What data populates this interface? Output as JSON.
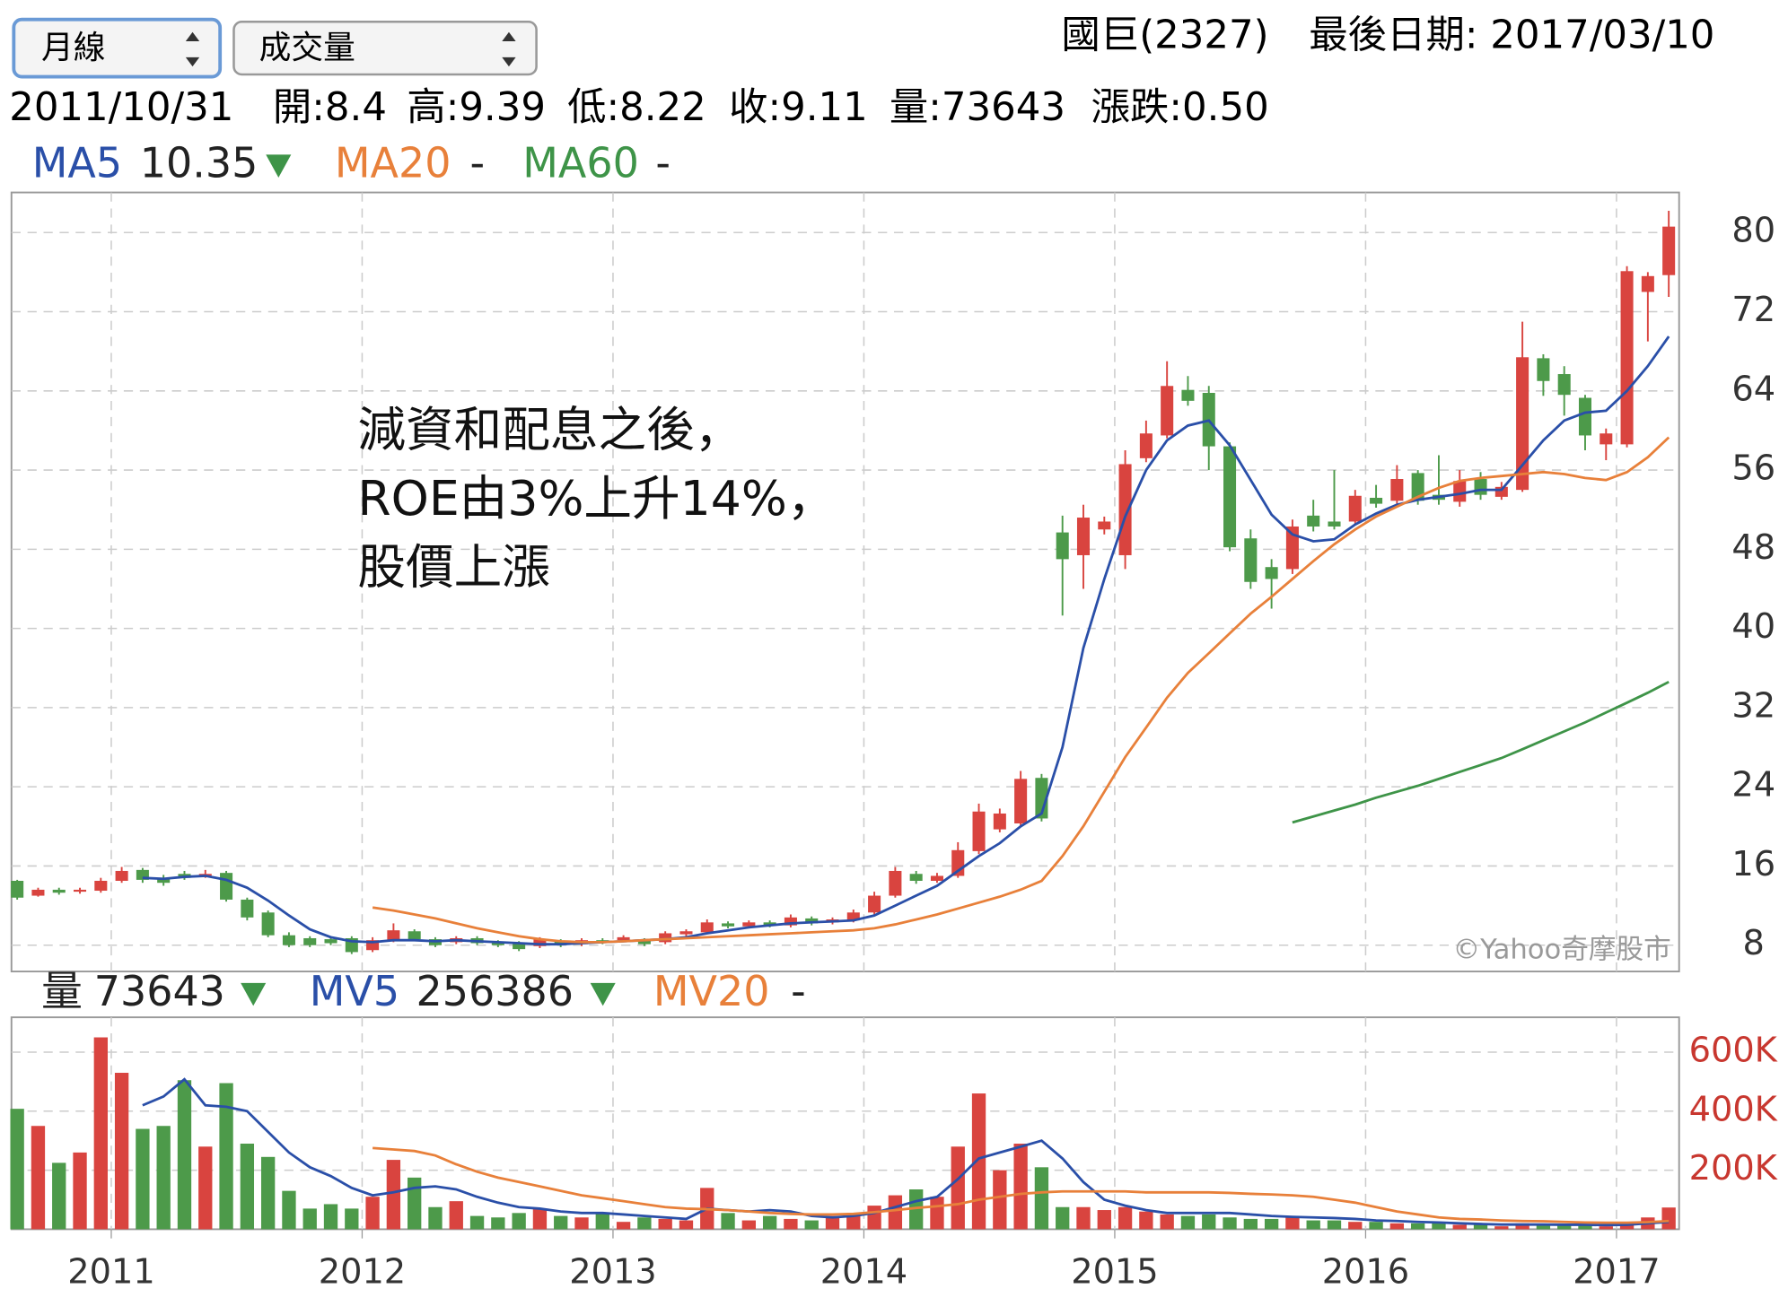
{
  "header": {
    "period_select": "月線",
    "indicator_select": "成交量",
    "stock": "國巨(2327)",
    "last_date": "最後日期: 2017/03/10"
  },
  "info": [
    "2011/10/31",
    "開:8.4",
    "高:9.39",
    "低:8.22",
    "收:9.11",
    "量:73643",
    "漲跌:0.50"
  ],
  "chart_data": [
    {
      "type": "candlestick",
      "up_color": "#d9443f",
      "down_color": "#4d9a4a",
      "open": [
        14.5,
        13.0,
        13.6,
        13.4,
        13.5,
        14.5,
        15.6,
        14.8,
        15.2,
        15.0,
        15.3,
        12.6,
        11.3,
        9.0,
        8.7,
        8.6,
        8.7,
        7.5,
        8.5,
        9.4,
        8.6,
        8.3,
        8.7,
        8.3,
        8.2,
        7.9,
        8.4,
        8.1,
        8.5,
        8.5,
        8.5,
        8.3,
        9.1,
        9.3,
        10.2,
        9.9,
        10.3,
        10.0,
        10.7,
        10.3,
        10.5,
        11.3,
        13.0,
        15.2,
        14.5,
        15.0,
        17.5,
        19.7,
        20.3,
        24.9,
        49.7,
        47.4,
        50.0,
        47.4,
        57.2,
        59.5,
        64.1,
        63.8,
        58.4,
        49.1,
        46.2,
        46.0,
        51.4,
        50.8,
        50.8,
        53.2,
        52.9,
        55.7,
        53.5,
        52.8,
        55.1,
        53.3,
        54.0,
        67.3,
        65.7,
        63.3,
        58.6,
        58.6,
        74.0,
        75.7
      ],
      "high": [
        14.6,
        13.8,
        13.8,
        13.8,
        14.8,
        15.9,
        15.8,
        15.1,
        15.5,
        15.6,
        15.5,
        12.8,
        11.5,
        9.3,
        8.9,
        8.8,
        8.9,
        8.8,
        10.2,
        9.6,
        8.8,
        8.9,
        8.9,
        8.5,
        8.4,
        8.8,
        8.6,
        8.7,
        8.7,
        9.0,
        8.7,
        9.4,
        9.6,
        10.6,
        10.4,
        10.5,
        10.5,
        11.1,
        10.9,
        10.8,
        11.6,
        13.4,
        15.9,
        15.5,
        15.3,
        18.4,
        22.3,
        21.8,
        25.6,
        25.3,
        51.4,
        52.5,
        51.3,
        58.0,
        61.0,
        67.0,
        65.5,
        64.5,
        58.8,
        50.0,
        47.0,
        51.0,
        53.0,
        56.0,
        54.0,
        54.5,
        56.5,
        56.0,
        57.5,
        56.0,
        55.8,
        54.8,
        71.0,
        67.7,
        66.5,
        63.6,
        60.2,
        76.6,
        76.0,
        82.2
      ],
      "low": [
        12.6,
        12.9,
        13.1,
        13.2,
        13.3,
        14.3,
        14.3,
        14.0,
        14.6,
        14.8,
        12.4,
        10.5,
        8.8,
        7.8,
        7.8,
        8.0,
        7.1,
        7.3,
        8.3,
        8.4,
        7.8,
        8.1,
        8.0,
        7.8,
        7.4,
        7.7,
        7.8,
        7.9,
        8.1,
        8.3,
        7.9,
        8.1,
        8.9,
        9.1,
        9.7,
        9.7,
        9.8,
        9.8,
        10.0,
        10.1,
        10.3,
        11.1,
        12.8,
        14.2,
        14.3,
        14.8,
        17.2,
        19.4,
        20.0,
        20.5,
        41.3,
        44.0,
        49.5,
        46.0,
        56.8,
        59.2,
        62.5,
        56.0,
        47.8,
        44.0,
        42.0,
        45.5,
        49.8,
        50.0,
        50.5,
        52.2,
        52.6,
        52.5,
        52.5,
        52.3,
        53.0,
        53.0,
        53.8,
        63.5,
        61.5,
        58.0,
        57.0,
        58.3,
        69.0,
        73.5
      ],
      "close": [
        12.8,
        13.6,
        13.3,
        13.6,
        14.5,
        15.5,
        14.6,
        14.3,
        14.8,
        15.2,
        12.6,
        10.8,
        9.0,
        8.0,
        8.0,
        8.2,
        7.3,
        8.5,
        9.5,
        8.6,
        8.0,
        8.7,
        8.2,
        8.0,
        7.6,
        8.6,
        8.0,
        8.5,
        8.3,
        8.8,
        8.1,
        9.2,
        9.4,
        10.3,
        9.9,
        10.3,
        10.0,
        10.8,
        10.2,
        10.6,
        11.3,
        13.0,
        15.5,
        14.5,
        15.0,
        17.6,
        21.5,
        21.3,
        24.8,
        20.8,
        47.0,
        51.2,
        50.8,
        56.6,
        59.7,
        64.5,
        63.0,
        58.4,
        48.2,
        44.7,
        45.0,
        50.3,
        50.3,
        50.3,
        53.4,
        52.6,
        55.1,
        52.9,
        53.0,
        54.9,
        53.5,
        54.3,
        67.4,
        65.0,
        63.6,
        59.5,
        59.7,
        76.1,
        75.6,
        80.6
      ],
      "series": [
        {
          "name": "MA5",
          "legend_value": "10.35",
          "color": "#2a4fa8",
          "values": [
            null,
            null,
            null,
            null,
            null,
            null,
            14.8,
            14.7,
            14.9,
            15.0,
            14.6,
            13.8,
            12.5,
            11.0,
            9.6,
            8.8,
            8.4,
            8.3,
            8.5,
            8.5,
            8.4,
            8.5,
            8.4,
            8.3,
            8.2,
            8.1,
            8.1,
            8.2,
            8.3,
            8.4,
            8.5,
            8.6,
            8.8,
            9.2,
            9.5,
            9.8,
            10.0,
            10.2,
            10.3,
            10.4,
            10.5,
            11.0,
            12.0,
            13.0,
            14.0,
            15.5,
            17.0,
            18.3,
            20.0,
            21.3,
            28,
            38,
            45,
            51.3,
            56,
            59,
            60.5,
            61.0,
            58.5,
            55,
            51.5,
            49.5,
            48.8,
            49.0,
            50.5,
            51.6,
            52.5,
            53.0,
            53.3,
            53.6,
            54.0,
            54.0,
            56.5,
            59.0,
            61.0,
            61.8,
            62.0,
            64,
            66.5,
            69.5
          ]
        },
        {
          "name": "MA20",
          "legend_value": "-",
          "color": "#e8803a",
          "values": [
            null,
            null,
            null,
            null,
            null,
            null,
            null,
            null,
            null,
            null,
            null,
            null,
            null,
            null,
            null,
            null,
            null,
            11.8,
            11.5,
            11.1,
            10.7,
            10.2,
            9.7,
            9.3,
            8.9,
            8.6,
            8.4,
            8.3,
            8.3,
            8.4,
            8.5,
            8.6,
            8.7,
            8.8,
            8.9,
            9.0,
            9.1,
            9.2,
            9.3,
            9.4,
            9.5,
            9.7,
            10.1,
            10.6,
            11.1,
            11.7,
            12.3,
            12.9,
            13.6,
            14.5,
            17,
            20,
            23.5,
            27,
            30,
            33,
            35.5,
            37.5,
            39.5,
            41.5,
            43.2,
            45,
            46.8,
            48.5,
            50,
            51.3,
            52.3,
            53.3,
            54.2,
            54.9,
            55.2,
            55.4,
            55.6,
            55.8,
            55.6,
            55.2,
            55.0,
            55.8,
            57.3,
            59.3
          ]
        },
        {
          "name": "MA60",
          "legend_value": "-",
          "color": "#3e9448",
          "values": [
            null,
            null,
            null,
            null,
            null,
            null,
            null,
            null,
            null,
            null,
            null,
            null,
            null,
            null,
            null,
            null,
            null,
            null,
            null,
            null,
            null,
            null,
            null,
            null,
            null,
            null,
            null,
            null,
            null,
            null,
            null,
            null,
            null,
            null,
            null,
            null,
            null,
            null,
            null,
            null,
            null,
            null,
            null,
            null,
            null,
            null,
            null,
            null,
            null,
            null,
            null,
            null,
            null,
            null,
            null,
            null,
            null,
            null,
            null,
            null,
            null,
            20.4,
            21.0,
            21.6,
            22.2,
            22.9,
            23.5,
            24.1,
            24.8,
            25.5,
            26.2,
            26.9,
            27.8,
            28.7,
            29.6,
            30.5,
            31.5,
            32.5,
            33.5,
            34.6
          ]
        }
      ],
      "ylim": [
        5.34,
        84.05
      ],
      "yticks": [
        8,
        16,
        24,
        32,
        40,
        48,
        56,
        64,
        72,
        80
      ],
      "grid": true,
      "annotation": [
        "減資和配息之後，",
        "ROE由3%上升14%，",
        "股價上漲"
      ],
      "watermark": "©Yahoo奇摩股市"
    },
    {
      "type": "bar",
      "categories": [
        null,
        null,
        null,
        null,
        null,
        "2011",
        null,
        null,
        null,
        null,
        null,
        null,
        null,
        null,
        null,
        null,
        null,
        "2012",
        null,
        null,
        null,
        null,
        null,
        null,
        null,
        null,
        null,
        null,
        null,
        "2013",
        null,
        null,
        null,
        null,
        null,
        null,
        null,
        null,
        null,
        null,
        null,
        "2014",
        null,
        null,
        null,
        null,
        null,
        null,
        null,
        null,
        null,
        null,
        null,
        "2015",
        null,
        null,
        null,
        null,
        null,
        null,
        null,
        null,
        null,
        null,
        null,
        "2016",
        null,
        null,
        null,
        null,
        null,
        null,
        null,
        null,
        null,
        null,
        null,
        "2017",
        null,
        null
      ],
      "series": [
        {
          "name": "量",
          "legend_value": "73643",
          "values": [
            408000,
            350000,
            225000,
            260000,
            650000,
            530000,
            340000,
            350000,
            505000,
            280000,
            495000,
            290000,
            245000,
            130000,
            70000,
            85000,
            70000,
            110000,
            235000,
            175000,
            75000,
            95000,
            45000,
            40000,
            55000,
            70000,
            45000,
            40000,
            55000,
            25000,
            40000,
            35000,
            30000,
            140000,
            55000,
            30000,
            45000,
            35000,
            30000,
            45000,
            55000,
            80000,
            115000,
            135000,
            110000,
            280000,
            460000,
            200000,
            290000,
            210000,
            75000,
            75000,
            65000,
            75000,
            60000,
            50000,
            45000,
            50000,
            40000,
            35000,
            35000,
            45000,
            30000,
            30000,
            25000,
            25000,
            20000,
            20000,
            20000,
            15000,
            15000,
            10000,
            20000,
            15000,
            12000,
            15000,
            10000,
            20000,
            40000,
            73643
          ]
        },
        {
          "name": "MV5",
          "legend_value": "256386",
          "color": "#2a4fa8",
          "values": [
            null,
            null,
            null,
            null,
            null,
            null,
            420000,
            450000,
            508000,
            420000,
            415000,
            400000,
            330000,
            260000,
            210000,
            180000,
            140000,
            115000,
            125000,
            140000,
            145000,
            135000,
            110000,
            90000,
            75000,
            70000,
            60000,
            55000,
            55000,
            50000,
            45000,
            40000,
            35000,
            70000,
            65000,
            60000,
            65000,
            60000,
            45000,
            40000,
            45000,
            55000,
            75000,
            95000,
            110000,
            170000,
            240000,
            260000,
            280000,
            300000,
            240000,
            160000,
            100000,
            80000,
            65000,
            55000,
            55000,
            55000,
            55000,
            50000,
            45000,
            42000,
            40000,
            38000,
            35000,
            30000,
            28000,
            25000,
            23000,
            20000,
            18000,
            16000,
            16000,
            16000,
            15000,
            15000,
            14000,
            15000,
            20000,
            25000
          ]
        },
        {
          "name": "MV20",
          "legend_value": "-",
          "color": "#e8803a",
          "values": [
            null,
            null,
            null,
            null,
            null,
            null,
            null,
            null,
            null,
            null,
            null,
            null,
            null,
            null,
            null,
            null,
            null,
            275000,
            270000,
            265000,
            250000,
            220000,
            195000,
            175000,
            160000,
            145000,
            130000,
            115000,
            105000,
            95000,
            85000,
            75000,
            70000,
            68000,
            65000,
            60000,
            55000,
            52000,
            50000,
            50000,
            52000,
            58000,
            65000,
            72000,
            78000,
            85000,
            100000,
            110000,
            120000,
            125000,
            128000,
            128000,
            128000,
            128000,
            125000,
            125000,
            125000,
            125000,
            123000,
            120000,
            118000,
            115000,
            110000,
            100000,
            90000,
            75000,
            60000,
            50000,
            40000,
            35000,
            33000,
            30000,
            28000,
            27000,
            25000,
            23000,
            22000,
            22000,
            24000,
            28000
          ]
        }
      ],
      "ylim": [
        0,
        718000
      ],
      "yticks": [
        {
          "value": 200000,
          "label": "200K"
        },
        {
          "value": 400000,
          "label": "400K"
        },
        {
          "value": 600000,
          "label": "600K"
        }
      ],
      "tick_color": "#c8372f",
      "grid": true
    }
  ]
}
